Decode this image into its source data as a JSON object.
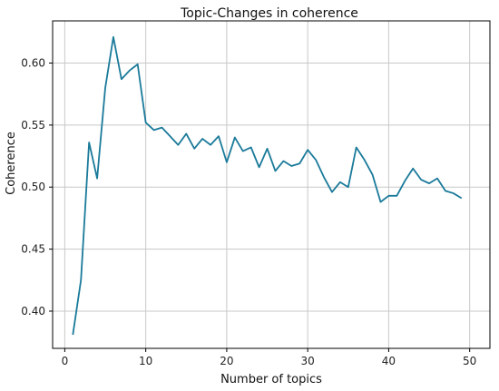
{
  "chart_data": {
    "type": "line",
    "title": "Topic-Changes in coherence",
    "xlabel": "Number of topics",
    "ylabel": "Coherence",
    "xlim": [
      -1.5,
      52.5
    ],
    "ylim": [
      0.37,
      0.634
    ],
    "x_ticks": [
      0,
      10,
      20,
      30,
      40,
      50
    ],
    "x_tick_labels": [
      "0",
      "10",
      "20",
      "30",
      "40",
      "50"
    ],
    "y_ticks": [
      0.4,
      0.45,
      0.5,
      0.55,
      0.6
    ],
    "y_tick_labels": [
      "0.40",
      "0.45",
      "0.50",
      "0.55",
      "0.60"
    ],
    "grid": true,
    "line_color": "#1a7a9a",
    "series": [
      {
        "x": [
          1,
          2,
          3,
          4,
          5,
          6,
          7,
          8,
          9,
          10,
          11,
          12,
          13,
          14,
          15,
          16,
          17,
          18,
          19,
          20,
          21,
          22,
          23,
          24,
          25,
          26,
          27,
          28,
          29,
          30,
          31,
          32,
          33,
          34,
          35,
          36,
          37,
          38,
          39,
          40,
          41,
          42,
          43,
          44,
          45,
          46,
          47,
          48,
          49
        ],
        "values": [
          0.381,
          0.425,
          0.536,
          0.507,
          0.58,
          0.621,
          0.587,
          0.594,
          0.599,
          0.552,
          0.546,
          0.548,
          0.541,
          0.534,
          0.543,
          0.531,
          0.539,
          0.534,
          0.541,
          0.52,
          0.54,
          0.529,
          0.532,
          0.516,
          0.531,
          0.513,
          0.521,
          0.517,
          0.519,
          0.53,
          0.522,
          0.508,
          0.496,
          0.504,
          0.5,
          0.532,
          0.522,
          0.51,
          0.488,
          0.493,
          0.493,
          0.505,
          0.515,
          0.506,
          0.503,
          0.507,
          0.497,
          0.495,
          0.491
        ]
      }
    ]
  }
}
